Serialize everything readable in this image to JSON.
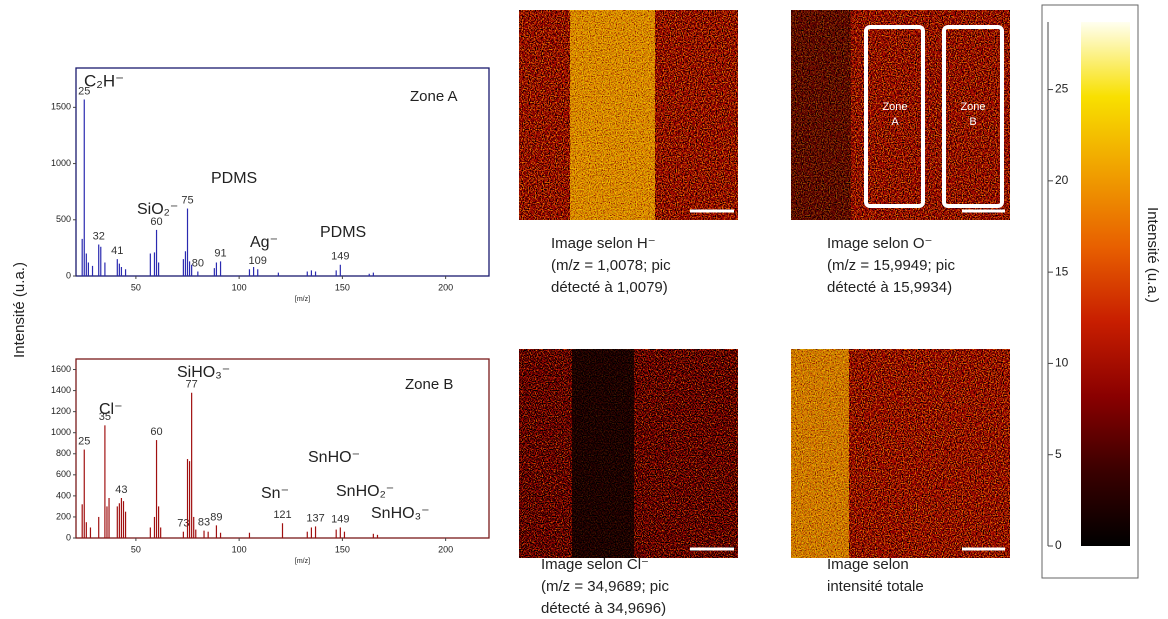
{
  "y_axis_label": "Intensité (u.a.)",
  "chart_data": [
    {
      "type": "spectrum",
      "xlabel": "[m/z]",
      "color": "#2a2ab0",
      "frame_color": "#1a1a6e",
      "xlim": [
        21,
        221
      ],
      "xticks": [
        50,
        100,
        150,
        200
      ],
      "ylim": [
        0,
        1850
      ],
      "yticks": [
        0,
        500,
        1000,
        1500
      ],
      "x": [
        24,
        25,
        26,
        27,
        29,
        32,
        33,
        35,
        41,
        42,
        43,
        45,
        57,
        59,
        60,
        61,
        73,
        74,
        75,
        76,
        77,
        80,
        88,
        89,
        91,
        105,
        107,
        109,
        119,
        133,
        135,
        137,
        147,
        149,
        163,
        165
      ],
      "values": [
        330,
        1570,
        200,
        120,
        90,
        280,
        260,
        120,
        150,
        110,
        80,
        60,
        200,
        210,
        410,
        120,
        150,
        220,
        600,
        130,
        100,
        40,
        70,
        120,
        130,
        60,
        80,
        60,
        30,
        40,
        50,
        40,
        50,
        100,
        20,
        30
      ],
      "x_labels": [
        null,
        "25",
        null,
        null,
        null,
        "32",
        null,
        null,
        "41",
        null,
        null,
        null,
        null,
        null,
        "60",
        null,
        null,
        null,
        "75",
        null,
        null,
        "80",
        null,
        null,
        "91",
        null,
        null,
        "109",
        null,
        null,
        null,
        null,
        null,
        "149",
        null,
        null
      ],
      "annotations": [
        "C₂H⁻",
        "Zone A",
        "PDMS",
        "SiO₂⁻",
        "Ag⁻",
        "PDMS"
      ]
    },
    {
      "type": "spectrum",
      "xlabel": "[m/z]",
      "color": "#a01010",
      "frame_color": "#7a1a1a",
      "xlim": [
        21,
        221
      ],
      "xticks": [
        50,
        100,
        150,
        200
      ],
      "ylim": [
        0,
        1700
      ],
      "yticks": [
        0,
        200,
        400,
        600,
        800,
        1000,
        1200,
        1400,
        1600
      ],
      "x": [
        24,
        25,
        26,
        28,
        32,
        35,
        36,
        37,
        41,
        42,
        43,
        44,
        45,
        57,
        59,
        60,
        61,
        62,
        73,
        75,
        76,
        77,
        78,
        79,
        83,
        85,
        89,
        91,
        105,
        121,
        133,
        135,
        137,
        147,
        149,
        151,
        165,
        167
      ],
      "values": [
        320,
        840,
        150,
        100,
        200,
        1070,
        300,
        380,
        300,
        330,
        380,
        350,
        250,
        100,
        200,
        930,
        300,
        100,
        60,
        750,
        730,
        1380,
        200,
        80,
        70,
        60,
        120,
        50,
        50,
        140,
        60,
        100,
        110,
        80,
        100,
        60,
        40,
        30
      ],
      "x_labels": [
        null,
        "25",
        null,
        null,
        null,
        "35",
        null,
        null,
        null,
        null,
        "43",
        null,
        null,
        null,
        null,
        "60",
        null,
        null,
        "73",
        null,
        null,
        "77",
        null,
        null,
        "83",
        null,
        "89",
        null,
        null,
        "121",
        null,
        null,
        "137",
        null,
        "149",
        null,
        null,
        null
      ],
      "annotations": [
        "SiHO₃⁻",
        "Zone B",
        "Cl⁻",
        "SnHO⁻",
        "Sn⁻",
        "SnHO₂⁻",
        "SnHO₃⁻"
      ]
    },
    {
      "type": "colorbar",
      "ylabel": "Intensité (u.a.)",
      "ylim": [
        0,
        28.7
      ],
      "yticks": [
        0,
        5,
        10,
        15,
        20,
        25
      ],
      "colors": [
        "#000000",
        "#3a0000",
        "#8a0000",
        "#c81e00",
        "#e86000",
        "#f0a000",
        "#f8e000",
        "#fffff0"
      ]
    }
  ],
  "images": [
    {
      "caption": [
        "Image selon H⁻",
        "(m/z = 1,0078; pic",
        "détecté à 1,0079)"
      ]
    },
    {
      "caption": [
        "Image selon O⁻",
        "(m/z = 15,9949; pic",
        "détecté à 15,9934)"
      ],
      "zones": [
        [
          "Zone",
          "A"
        ],
        [
          "Zone",
          "B"
        ]
      ]
    },
    {
      "caption": [
        "Image selon Cl⁻",
        "(m/z = 34,9689; pic",
        "détecté à 34,9696)"
      ]
    },
    {
      "caption": [
        "Image selon",
        "intensité totale"
      ]
    }
  ]
}
